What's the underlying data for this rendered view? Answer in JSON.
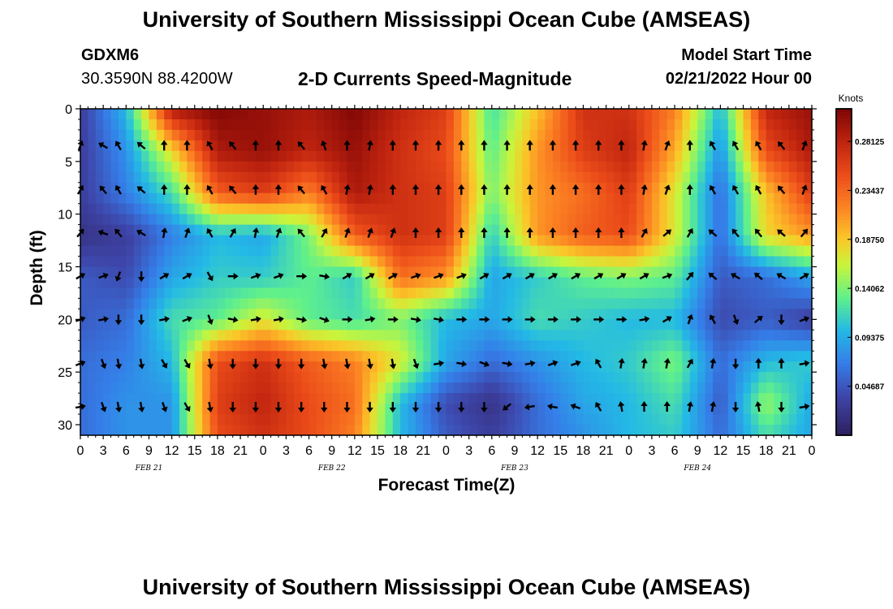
{
  "header": {
    "title": "University of Southern Mississippi Ocean Cube (AMSEAS)",
    "station_id": "GDXM6",
    "station_location": "30.3590N  88.4200W",
    "plot_title": "2-D Currents Speed-Magnitude",
    "model_start_label": "Model Start Time",
    "model_start_time": "02/21/2022 Hour 00"
  },
  "footer": {
    "title": "University of Southern Mississippi Ocean Cube (AMSEAS)"
  },
  "colors": {
    "low": "#2e1f5e",
    "mid": "#63f26a",
    "high": "#8b0000"
  },
  "chart_data": {
    "type": "heatmap",
    "title": "2-D Currents Speed-Magnitude",
    "xlabel": "Forecast Time(Z)",
    "ylabel": "Depth (ft)",
    "x_hours": [
      0,
      12,
      24,
      36,
      48,
      60,
      72,
      84,
      96
    ],
    "x_tick_labels": [
      "0",
      "3",
      "6",
      "9",
      "12",
      "15",
      "18",
      "21",
      "0",
      "3",
      "6",
      "9",
      "12",
      "15",
      "18",
      "21",
      "0",
      "3",
      "6",
      "9",
      "12",
      "15",
      "18",
      "21",
      "0",
      "3",
      "6",
      "9",
      "12",
      "15",
      "18",
      "21",
      "0"
    ],
    "date_labels": [
      {
        "label": "FEB 21",
        "hour": 9
      },
      {
        "label": "FEB 22",
        "hour": 33
      },
      {
        "label": "FEB 23",
        "hour": 57
      },
      {
        "label": "FEB 24",
        "hour": 81
      }
    ],
    "xlim": [
      0,
      96
    ],
    "ylim": [
      0,
      31
    ],
    "y_ticks": [
      0,
      5,
      10,
      15,
      20,
      25,
      30
    ],
    "colorbar": {
      "title": "Knots",
      "ticks": [
        "0.04687",
        "0.09375",
        "0.14062",
        "0.18750",
        "0.23437",
        "0.28125"
      ],
      "tick_values": [
        0.04687,
        0.09375,
        0.14062,
        0.1875,
        0.23437,
        0.28125
      ],
      "range": [
        0,
        0.3125
      ]
    },
    "grid_hours": [
      0,
      6,
      12,
      18,
      24,
      30,
      36,
      42,
      48,
      54,
      60,
      66,
      72,
      78,
      84,
      90,
      96
    ],
    "grid_depths": [
      0,
      4,
      8,
      12,
      16,
      20,
      24,
      28,
      31
    ],
    "speed_grid": [
      [
        0.03,
        0.1,
        0.29,
        0.31,
        0.3,
        0.29,
        0.31,
        0.28,
        0.26,
        0.12,
        0.19,
        0.27,
        0.27,
        0.22,
        0.1,
        0.28,
        0.3
      ],
      [
        0.03,
        0.08,
        0.18,
        0.29,
        0.3,
        0.28,
        0.3,
        0.27,
        0.25,
        0.13,
        0.21,
        0.26,
        0.28,
        0.2,
        0.08,
        0.25,
        0.29
      ],
      [
        0.03,
        0.07,
        0.12,
        0.24,
        0.26,
        0.22,
        0.29,
        0.27,
        0.26,
        0.14,
        0.21,
        0.23,
        0.26,
        0.17,
        0.06,
        0.19,
        0.26
      ],
      [
        0.02,
        0.03,
        0.07,
        0.1,
        0.09,
        0.14,
        0.24,
        0.27,
        0.26,
        0.11,
        0.21,
        0.24,
        0.25,
        0.17,
        0.06,
        0.18,
        0.21
      ],
      [
        0.05,
        0.04,
        0.09,
        0.11,
        0.11,
        0.13,
        0.11,
        0.23,
        0.21,
        0.09,
        0.11,
        0.13,
        0.14,
        0.13,
        0.05,
        0.06,
        0.09
      ],
      [
        0.05,
        0.06,
        0.12,
        0.13,
        0.17,
        0.13,
        0.12,
        0.14,
        0.1,
        0.09,
        0.12,
        0.11,
        0.1,
        0.1,
        0.04,
        0.05,
        0.03
      ],
      [
        0.06,
        0.07,
        0.1,
        0.25,
        0.27,
        0.24,
        0.22,
        0.17,
        0.09,
        0.06,
        0.08,
        0.1,
        0.11,
        0.14,
        0.06,
        0.1,
        0.11
      ],
      [
        0.06,
        0.08,
        0.08,
        0.26,
        0.28,
        0.25,
        0.23,
        0.1,
        0.04,
        0.02,
        0.06,
        0.09,
        0.1,
        0.12,
        0.05,
        0.15,
        0.09
      ],
      [
        0.06,
        0.08,
        0.08,
        0.25,
        0.27,
        0.25,
        0.22,
        0.1,
        0.05,
        0.03,
        0.06,
        0.08,
        0.1,
        0.11,
        0.06,
        0.12,
        0.09
      ]
    ],
    "arrow_hours": [
      0,
      3,
      5,
      8,
      11,
      14,
      17,
      20,
      23,
      26,
      29,
      32,
      35,
      38,
      41,
      44,
      47,
      50,
      53,
      56,
      59,
      62,
      65,
      68,
      71,
      74,
      77,
      80,
      83,
      86,
      89,
      92,
      95
    ],
    "arrow_depths": [
      3.5,
      7.7,
      11.8,
      15.9,
      20.0,
      24.2,
      28.3
    ],
    "arrow_directions_deg": [
      [
        20,
        300,
        330,
        310,
        0,
        0,
        330,
        320,
        0,
        0,
        320,
        340,
        0,
        10,
        0,
        0,
        0,
        0,
        0,
        0,
        0,
        0,
        0,
        0,
        0,
        10,
        20,
        0,
        330,
        330,
        330,
        320,
        20
      ],
      [
        30,
        320,
        330,
        310,
        0,
        0,
        330,
        320,
        0,
        0,
        320,
        330,
        10,
        10,
        0,
        0,
        0,
        0,
        0,
        0,
        0,
        0,
        0,
        0,
        0,
        10,
        20,
        0,
        330,
        330,
        330,
        320,
        20
      ],
      [
        40,
        290,
        320,
        300,
        10,
        20,
        330,
        30,
        10,
        20,
        320,
        30,
        20,
        20,
        20,
        0,
        0,
        0,
        0,
        0,
        0,
        0,
        0,
        0,
        0,
        30,
        50,
        30,
        310,
        320,
        320,
        310,
        40
      ],
      [
        60,
        70,
        200,
        180,
        60,
        60,
        150,
        90,
        70,
        70,
        90,
        100,
        60,
        60,
        60,
        70,
        70,
        70,
        60,
        60,
        60,
        60,
        60,
        60,
        60,
        60,
        70,
        40,
        310,
        300,
        310,
        300,
        60
      ],
      [
        70,
        80,
        180,
        180,
        80,
        70,
        160,
        100,
        80,
        80,
        100,
        110,
        90,
        80,
        90,
        100,
        100,
        90,
        90,
        90,
        90,
        90,
        90,
        90,
        90,
        80,
        60,
        20,
        330,
        160,
        50,
        180,
        70
      ],
      [
        70,
        160,
        170,
        170,
        150,
        150,
        170,
        180,
        180,
        180,
        180,
        170,
        170,
        170,
        170,
        160,
        80,
        100,
        110,
        100,
        80,
        70,
        70,
        330,
        10,
        10,
        10,
        30,
        10,
        180,
        0,
        0,
        80
      ],
      [
        80,
        160,
        170,
        170,
        160,
        150,
        170,
        180,
        180,
        180,
        180,
        180,
        180,
        180,
        180,
        180,
        180,
        180,
        180,
        230,
        260,
        280,
        290,
        330,
        350,
        0,
        0,
        10,
        10,
        180,
        350,
        180,
        80
      ]
    ]
  }
}
